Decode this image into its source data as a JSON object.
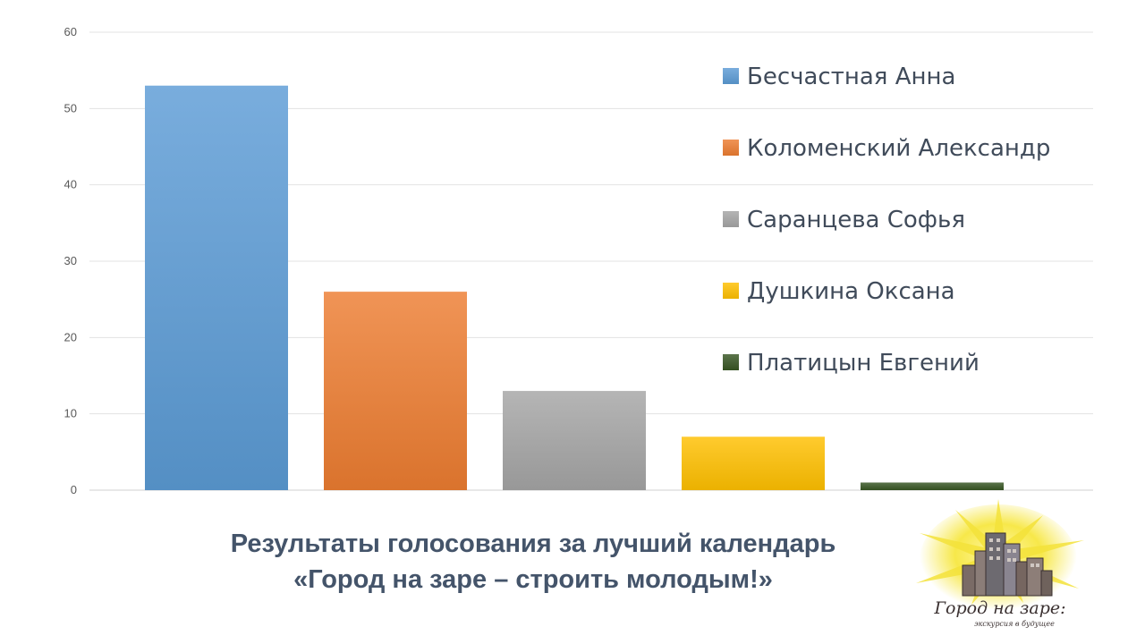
{
  "chart_data": {
    "type": "bar",
    "title": "",
    "xlabel": "",
    "ylabel": "",
    "ylim": [
      0,
      60
    ],
    "yticks": [
      "0",
      "10",
      "20",
      "30",
      "40",
      "50",
      "60"
    ],
    "grid": true,
    "legend_position": "right",
    "bars": [
      {
        "name": "Бесчастная Анна",
        "value": 53,
        "color": "#5b9bd5"
      },
      {
        "name": "Коломенский Александр",
        "value": 26,
        "color": "#ed7d31"
      },
      {
        "name": "Саранцева Софья",
        "value": 13,
        "color": "#a5a5a5"
      },
      {
        "name": "Душкина Оксана",
        "value": 7,
        "color": "#ffc000"
      },
      {
        "name": "Платицын Евгений",
        "value": 1,
        "color": "#375623"
      }
    ]
  },
  "caption": {
    "line1": "Результаты голосования за лучший календарь",
    "line2": "«Город на заре – строить молодым!»"
  },
  "logo": {
    "name": "Город на заре:",
    "tagline": "экскурсия в будущее"
  }
}
